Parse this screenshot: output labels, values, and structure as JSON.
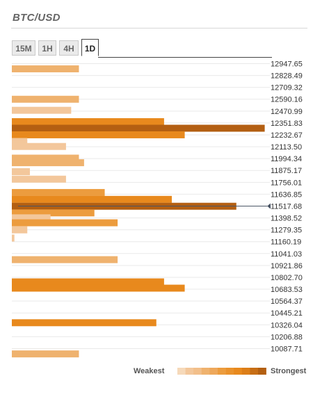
{
  "title": "BTC/USD",
  "tabs": [
    {
      "label": "15M",
      "active": false
    },
    {
      "label": "1H",
      "active": false
    },
    {
      "label": "4H",
      "active": false
    },
    {
      "label": "1D",
      "active": true
    }
  ],
  "legend": {
    "weak_label": "Weakest",
    "strong_label": "Strongest"
  },
  "colors": {
    "weak": "#f3c79b",
    "light": "#efb26e",
    "medium": "#ec9c3e",
    "strong": "#e8891d",
    "strongest": "#b35f12",
    "price_line": "#4a5566",
    "grid": "#e9e9e9"
  },
  "chart_data": {
    "type": "bar",
    "orientation": "horizontal",
    "title": "BTC/USD",
    "current_price": 11517.68,
    "ylim": [
      10028.0,
      13007.0
    ],
    "xlim": [
      0,
      10
    ],
    "y_ticks": [
      12947.65,
      12828.49,
      12709.32,
      12590.16,
      12470.99,
      12351.83,
      12232.67,
      12113.5,
      11994.34,
      11875.17,
      11756.01,
      11636.85,
      11517.68,
      11398.52,
      11279.35,
      11160.19,
      11041.03,
      10921.86,
      10802.7,
      10683.53,
      10564.37,
      10445.21,
      10326.04,
      10206.88,
      10087.71
    ],
    "y_tick_labels": [
      "12947.65",
      "12828.49",
      "12709.32",
      "12590.16",
      "12470.99",
      "12351.83",
      "12232.67",
      "12113.50",
      "11994.34",
      "11875.17",
      "11756.01",
      "11636.85",
      "11517.68",
      "11398.52",
      "11279.35",
      "11160.19",
      "11041.03",
      "10921.86",
      "10802.70",
      "10683.53",
      "10564.37",
      "10445.21",
      "10326.04",
      "10206.88",
      "10087.71"
    ],
    "bars": [
      {
        "y": 12895,
        "value": 2.6,
        "level": "light"
      },
      {
        "y": 12590,
        "value": 2.6,
        "level": "light"
      },
      {
        "y": 12479,
        "value": 2.3,
        "level": "weak"
      },
      {
        "y": 12365,
        "value": 5.9,
        "level": "strong"
      },
      {
        "y": 12299,
        "value": 9.8,
        "level": "strongest"
      },
      {
        "y": 12233,
        "value": 6.7,
        "level": "strong"
      },
      {
        "y": 12166,
        "value": 0.6,
        "level": "weak"
      },
      {
        "y": 12116,
        "value": 2.1,
        "level": "weak"
      },
      {
        "y": 11999,
        "value": 2.6,
        "level": "light"
      },
      {
        "y": 11953,
        "value": 2.8,
        "level": "light"
      },
      {
        "y": 11863,
        "value": 0.7,
        "level": "weak"
      },
      {
        "y": 11788,
        "value": 2.1,
        "level": "weak"
      },
      {
        "y": 11654,
        "value": 3.6,
        "level": "medium"
      },
      {
        "y": 11585,
        "value": 6.2,
        "level": "strong"
      },
      {
        "y": 11516,
        "value": 8.7,
        "level": "strongest"
      },
      {
        "y": 11449,
        "value": 3.2,
        "level": "medium"
      },
      {
        "y": 11400,
        "value": 1.5,
        "level": "weak"
      },
      {
        "y": 11350,
        "value": 4.1,
        "level": "medium"
      },
      {
        "y": 11279,
        "value": 0.6,
        "level": "weak"
      },
      {
        "y": 11197,
        "value": 0.1,
        "level": "weak"
      },
      {
        "y": 10980,
        "value": 4.1,
        "level": "light"
      },
      {
        "y": 10757,
        "value": 5.9,
        "level": "strong"
      },
      {
        "y": 10694,
        "value": 6.7,
        "level": "strong"
      },
      {
        "y": 10347,
        "value": 5.6,
        "level": "strong"
      },
      {
        "y": 10034,
        "value": 2.6,
        "level": "light"
      }
    ]
  }
}
